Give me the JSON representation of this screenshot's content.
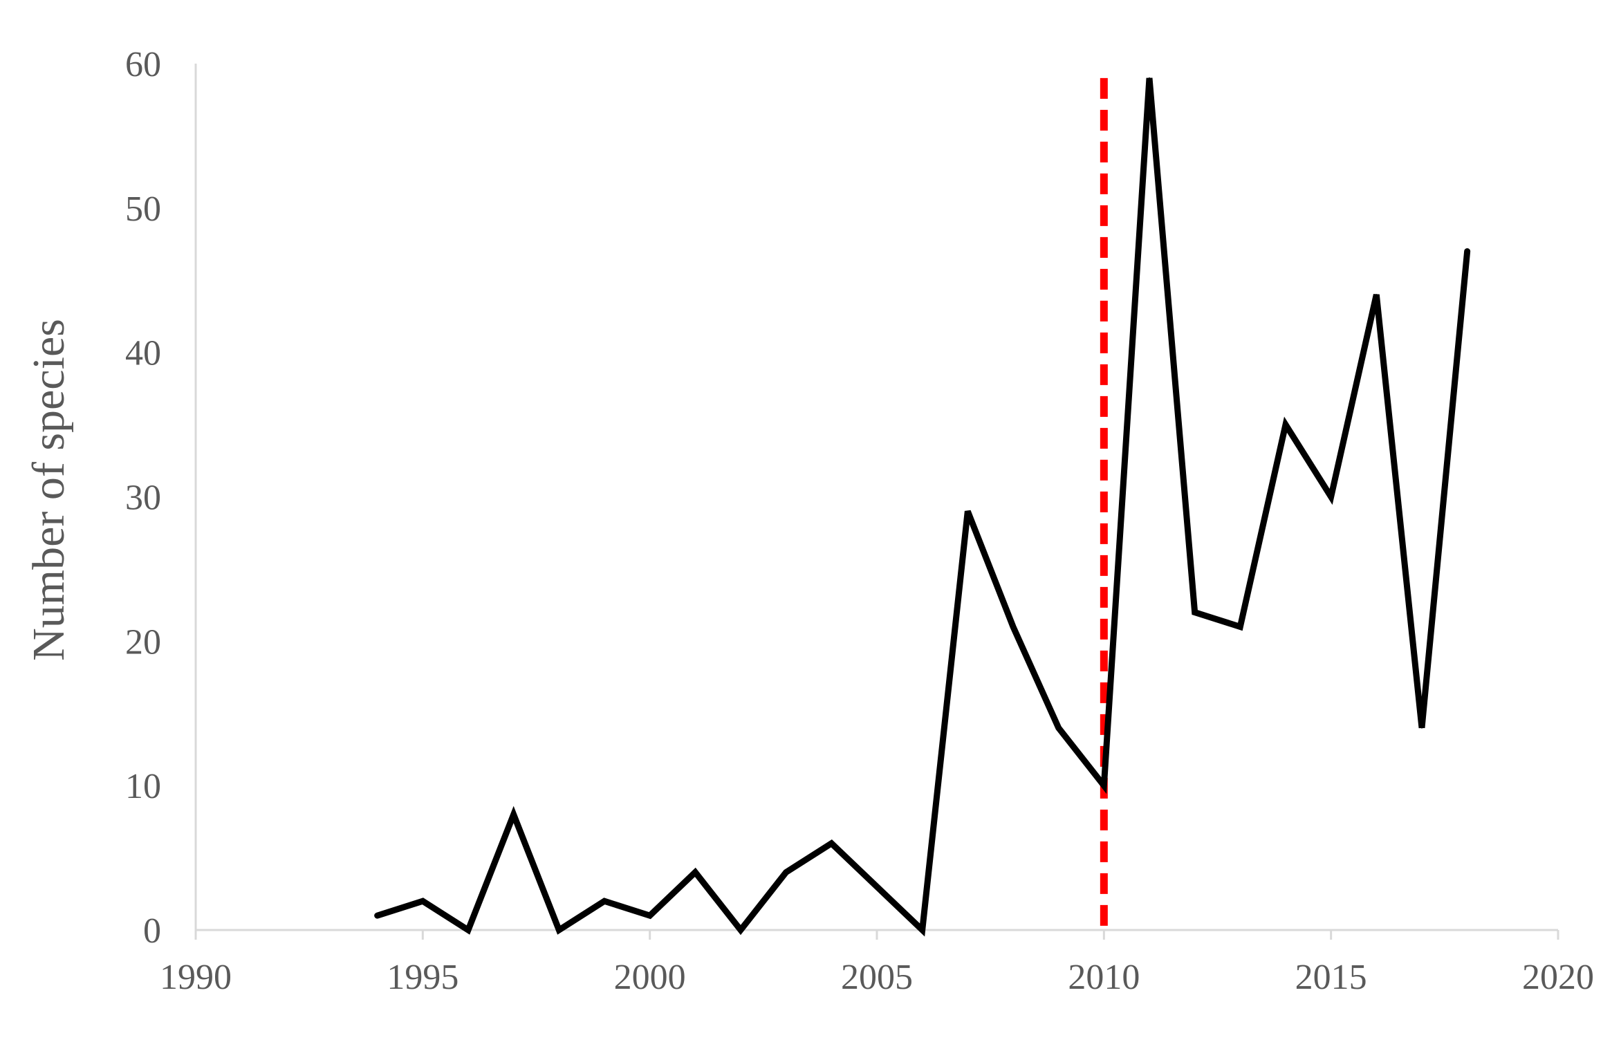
{
  "chart_data": {
    "type": "line",
    "title": "",
    "xlabel": "",
    "ylabel": "Number of species",
    "xlim": [
      1990,
      2020
    ],
    "ylim": [
      0,
      60
    ],
    "xticks": [
      1990,
      1995,
      2000,
      2005,
      2010,
      2015,
      2020
    ],
    "yticks": [
      0,
      10,
      20,
      30,
      40,
      50,
      60
    ],
    "grid": false,
    "legend": "none",
    "series": [
      {
        "color": "#000000",
        "x": [
          1994,
          1995,
          1996,
          1997,
          1998,
          1999,
          2000,
          2001,
          2002,
          2003,
          2004,
          2005,
          2006,
          2007,
          2008,
          2009,
          2010,
          2011,
          2012,
          2013,
          2014,
          2015,
          2016,
          2017,
          2018
        ],
        "y": [
          1,
          2,
          0,
          8,
          0,
          2,
          1,
          4,
          0,
          4,
          6,
          3,
          0,
          29,
          21,
          14,
          10,
          59,
          22,
          21,
          35,
          30,
          44,
          14,
          47
        ]
      }
    ],
    "reference_lines": [
      {
        "orientation": "vertical",
        "x": 2010,
        "style": "dashed",
        "color": "#ff0000"
      }
    ],
    "colors": {
      "axis": "#d9d9d9",
      "text": "#595959"
    }
  }
}
